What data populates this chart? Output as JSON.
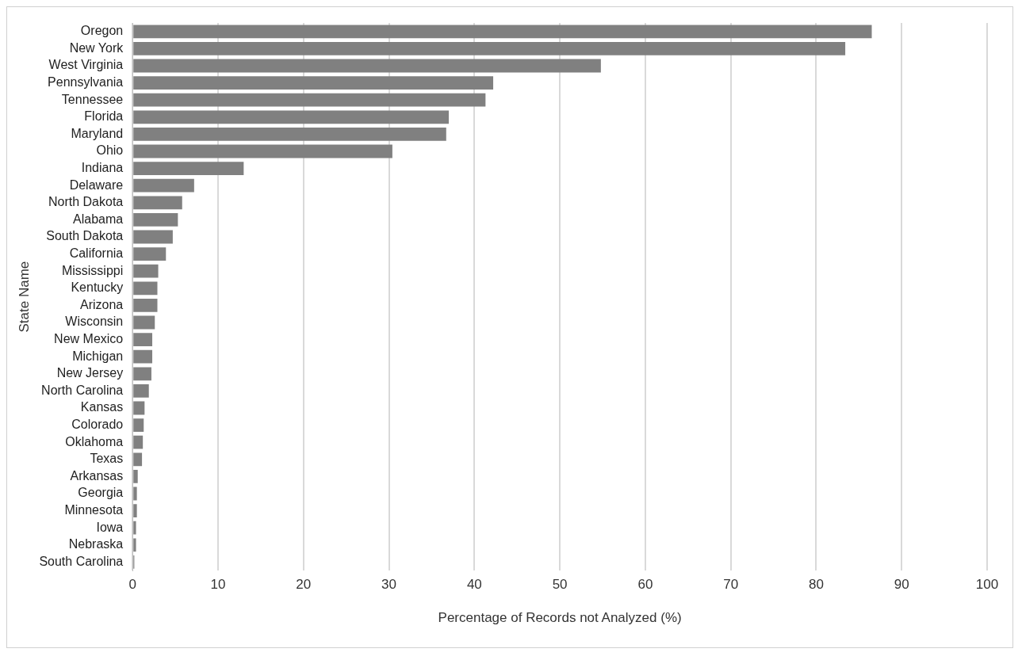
{
  "chart_data": {
    "type": "bar",
    "orientation": "horizontal",
    "categories": [
      "Oregon",
      "New York",
      "West Virginia",
      "Pennsylvania",
      "Tennessee",
      "Florida",
      "Maryland",
      "Ohio",
      "Indiana",
      "Delaware",
      "North Dakota",
      "Alabama",
      "South Dakota",
      "California",
      "Mississippi",
      "Kentucky",
      "Arizona",
      "Wisconsin",
      "New Mexico",
      "Michigan",
      "New Jersey",
      "North Carolina",
      "Kansas",
      "Colorado",
      "Oklahoma",
      "Texas",
      "Arkansas",
      "Georgia",
      "Minnesota",
      "Iowa",
      "Nebraska",
      "South Carolina"
    ],
    "values": [
      86.5,
      83.4,
      54.8,
      42.2,
      41.3,
      37.0,
      36.7,
      30.4,
      13.0,
      7.2,
      5.8,
      5.3,
      4.7,
      3.9,
      3.0,
      2.9,
      2.9,
      2.6,
      2.3,
      2.3,
      2.2,
      1.9,
      1.4,
      1.3,
      1.2,
      1.1,
      0.6,
      0.5,
      0.5,
      0.4,
      0.4,
      0.2
    ],
    "color": "#808080",
    "xlabel": "Percentage of Records not Analyzed (%)",
    "ylabel": "State Name",
    "xlim": [
      0,
      100
    ],
    "xticks": [
      0,
      10,
      20,
      30,
      40,
      50,
      60,
      70,
      80,
      90,
      100
    ],
    "grid": "x",
    "legend": false
  }
}
